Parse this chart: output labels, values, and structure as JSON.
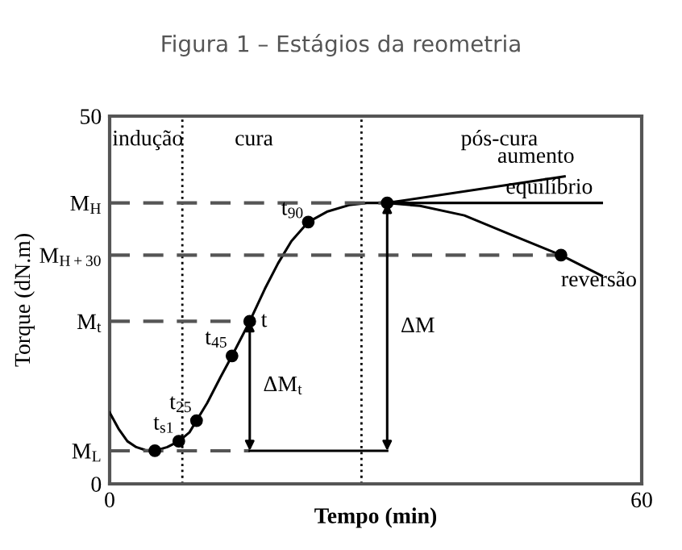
{
  "chart_data": {
    "type": "line",
    "title": "Figura 1 – Estágios da reometria",
    "xlabel": "Tempo (min)",
    "ylabel": "Torque (dN.m)",
    "xlim": [
      0,
      60
    ],
    "ylim": [
      0,
      50
    ],
    "xticks": [
      0,
      60
    ],
    "yticks": [
      0,
      {
        "value": 4.5,
        "label": "M$_{L}$"
      },
      {
        "value": 22.1,
        "label": "M$_{t}$"
      },
      {
        "value": 31.1,
        "label": "M$_{H+30}$"
      },
      {
        "value": 38.2,
        "label": "M$_{H}$"
      },
      50
    ],
    "grid": false,
    "legend": false,
    "series": [
      {
        "color": "#000000",
        "line_style": "solid",
        "marker": "none",
        "x": [
          0,
          1,
          2,
          3,
          4,
          5.1,
          6.5,
          7.8,
          9,
          9.8,
          11,
          12.5,
          13.8,
          15.8,
          17.5,
          19,
          20.5,
          22.4,
          24.5,
          27,
          29,
          31.3,
          35,
          40,
          45,
          50.9,
          55.5
        ],
        "values": [
          9.7,
          7.5,
          5.8,
          5,
          4.6,
          4.5,
          5,
          5.8,
          7,
          8.6,
          11,
          14.5,
          17.4,
          22.1,
          26.5,
          30,
          33,
          35.6,
          37,
          37.9,
          38.2,
          38.2,
          37.8,
          36.5,
          34,
          31.1,
          28.3
        ]
      },
      {
        "type": "scatter",
        "color": "#000000",
        "marker": "circle",
        "x": [
          5.1,
          7.8,
          9.8,
          13.8,
          15.8,
          22.4,
          31.3,
          50.9
        ],
        "values": [
          4.5,
          5.8,
          8.6,
          17.4,
          22.1,
          35.6,
          38.2,
          31.1
        ]
      },
      {
        "color": "#000000",
        "line_style": "solid",
        "marker": "none",
        "x": [
          31.3,
          51.3
        ],
        "values": [
          38.2,
          41.8
        ]
      },
      {
        "color": "#000000",
        "line_style": "solid",
        "marker": "none",
        "x": [
          31.3,
          55.5
        ],
        "values": [
          38.2,
          38.2
        ]
      },
      {
        "color": "#555555",
        "line_style": "dashed",
        "marker": "none",
        "x": [
          0,
          31.3
        ],
        "values": [
          38.2,
          38.2
        ]
      },
      {
        "color": "#555555",
        "line_style": "dashed",
        "marker": "none",
        "x": [
          0,
          50.9
        ],
        "values": [
          31.1,
          31.1
        ]
      },
      {
        "color": "#555555",
        "line_style": "dashed",
        "marker": "none",
        "x": [
          0,
          15.8
        ],
        "values": [
          22.1,
          22.1
        ]
      },
      {
        "color": "#555555",
        "line_style": "dashed",
        "marker": "none",
        "x": [
          0,
          15.8
        ],
        "values": [
          4.5,
          4.5
        ]
      },
      {
        "color": "#000000",
        "line_style": "solid",
        "marker": "none",
        "x": [
          15.8,
          31.3
        ],
        "values": [
          4.5,
          4.5
        ]
      }
    ],
    "ref_lines": [
      {
        "axis": "x",
        "value": 8.2,
        "line_style": "dotted",
        "color": "#000000"
      },
      {
        "axis": "x",
        "value": 28.4,
        "line_style": "dotted",
        "color": "#000000"
      }
    ],
    "annotations": [
      "indução",
      "cura",
      "pós-cura",
      {
        "text": "t$_{s1}$",
        "x": 7.8,
        "y": 5.8
      },
      {
        "text": "t$_{25}$",
        "x": 9.8,
        "y": 8.6
      },
      {
        "text": "t$_{45}$",
        "x": 13.8,
        "y": 17.4
      },
      {
        "text": "t",
        "x": 15.8,
        "y": 22.1
      },
      {
        "text": "t$_{90}$",
        "x": 22.4,
        "y": 35.6
      },
      "ΔM$_{t}$",
      "ΔM",
      {
        "text": "aumento",
        "x": 51.3,
        "y": 41.8
      },
      {
        "text": "equilíbrio",
        "x": 55.5,
        "y": 38.2
      },
      {
        "text": "reversão",
        "x": 50.9,
        "y": 31.1
      }
    ]
  }
}
